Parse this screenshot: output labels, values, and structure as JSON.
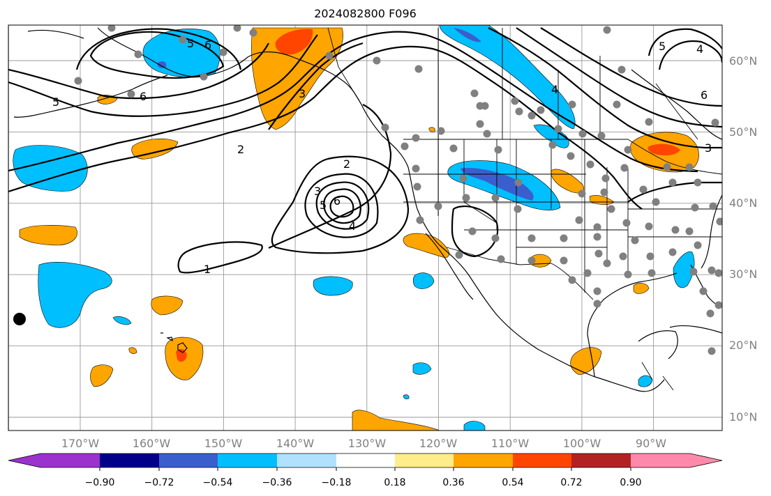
{
  "title": "2024082800 F096",
  "lat_labels": [
    {
      "text": "60°N",
      "lat": 60
    },
    {
      "text": "50°N",
      "lat": 50
    },
    {
      "text": "40°N",
      "lat": 40
    },
    {
      "text": "30°N",
      "lat": 30
    },
    {
      "text": "20°N",
      "lat": 20
    },
    {
      "text": "10°N",
      "lat": 10
    }
  ],
  "lon_labels": [
    {
      "text": "170°W",
      "lon": -170
    },
    {
      "text": "160°W",
      "lon": -160
    },
    {
      "text": "150°W",
      "lon": -150
    },
    {
      "text": "140°W",
      "lon": -140
    },
    {
      "text": "130°W",
      "lon": -130
    },
    {
      "text": "120°W",
      "lon": -120
    },
    {
      "text": "110°W",
      "lon": -110
    },
    {
      "text": "100°W",
      "lon": -100
    },
    {
      "text": "90°W",
      "lon": -90
    }
  ],
  "colorbar": {
    "colors": [
      "#9b32cd",
      "#00008b",
      "#3a5fcd",
      "#00bfff",
      "#b0e2ff",
      "#ffffff",
      "#ffec8b",
      "#ffa500",
      "#ff4500",
      "#b22222",
      "#ff89ab"
    ],
    "tick_labels": [
      "−0.90",
      "−0.72",
      "−0.54",
      "−0.36",
      "−0.18",
      "0.18",
      "0.36",
      "0.54",
      "0.72",
      "0.90"
    ]
  },
  "contour_labels": [
    "2",
    "3",
    "4",
    "5",
    "6",
    "1"
  ]
}
